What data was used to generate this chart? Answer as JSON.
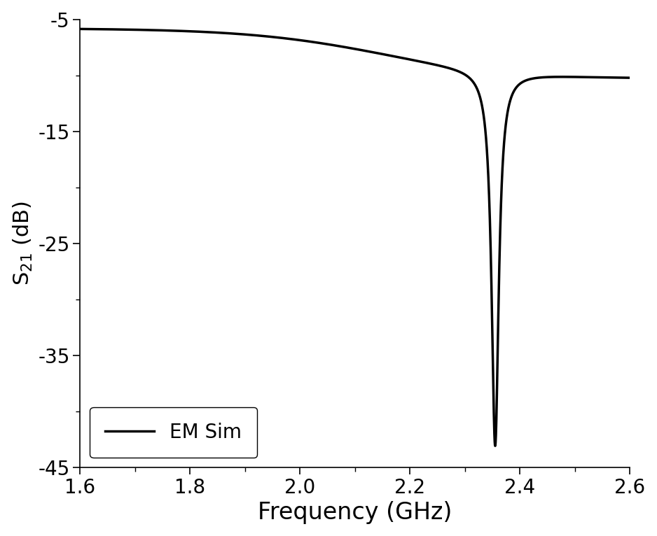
{
  "title": "",
  "xlabel": "Frequency (GHz)",
  "ylabel": "S$_{21}$ (dB)",
  "xlim": [
    1.6,
    2.6
  ],
  "ylim": [
    -45,
    -5
  ],
  "xticks": [
    1.6,
    1.8,
    2.0,
    2.2,
    2.4,
    2.6
  ],
  "yticks": [
    -45,
    -35,
    -25,
    -15,
    -5
  ],
  "legend_label": "EM Sim",
  "line_color": "#000000",
  "line_width": 2.5,
  "resonance_freq": 2.355,
  "start_freq": 1.6,
  "end_freq": 2.6,
  "background_color": "#ffffff",
  "xlabel_fontsize": 24,
  "ylabel_fontsize": 22,
  "tick_fontsize": 20,
  "legend_fontsize": 20
}
